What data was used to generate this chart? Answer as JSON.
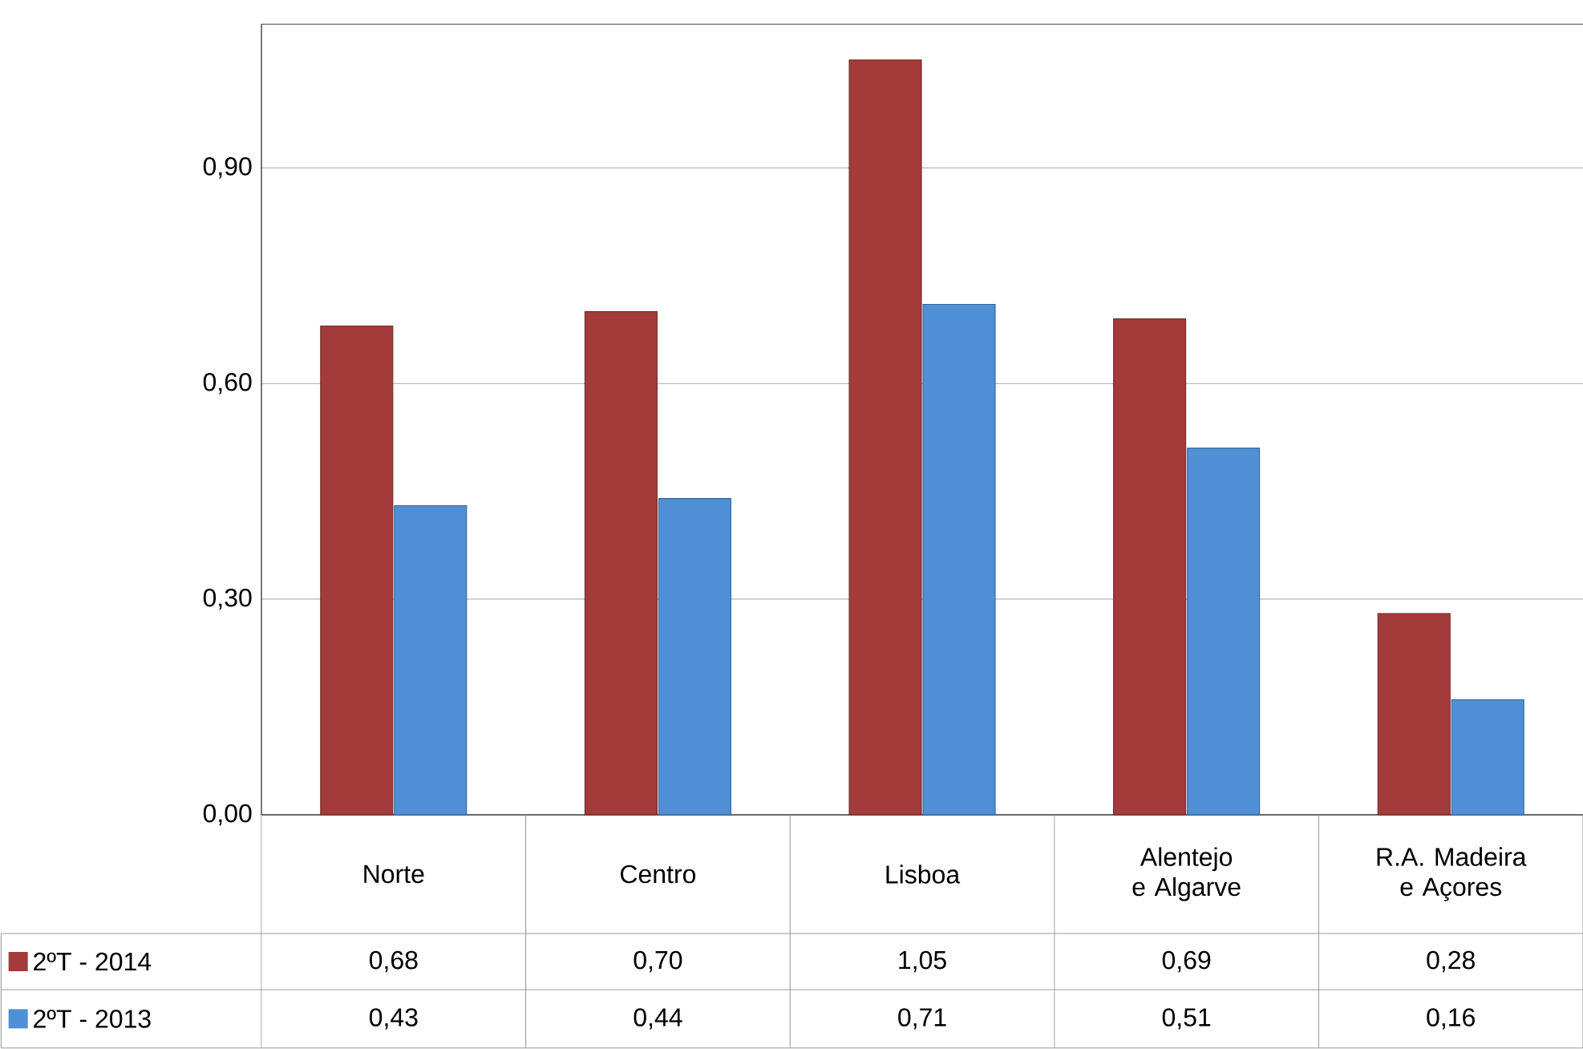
{
  "chart_data": {
    "type": "bar",
    "categories": [
      "Norte",
      "Centro",
      "Lisboa",
      "Alentejo e Algarve",
      "R.A. Madeira e Açores"
    ],
    "series": [
      {
        "name": "2ºT - 2014",
        "color": "#a23b3a",
        "values": [
          0.68,
          0.7,
          1.05,
          0.69,
          0.28
        ],
        "value_labels": [
          "0,68",
          "0,70",
          "1,05",
          "0,69",
          "0,28"
        ]
      },
      {
        "name": "2ºT - 2013",
        "color": "#4f8fd6",
        "values": [
          0.43,
          0.44,
          0.71,
          0.51,
          0.16
        ],
        "value_labels": [
          "0,43",
          "0,44",
          "0,71",
          "0,51",
          "0,16"
        ]
      }
    ],
    "ylim": [
      0,
      1.1
    ],
    "yticks": [
      {
        "value": 0,
        "label": "0,00"
      },
      {
        "value": 0.3,
        "label": "0,30"
      },
      {
        "value": 0.6,
        "label": "0,60"
      },
      {
        "value": 0.9,
        "label": "0,90"
      }
    ],
    "grid": "y",
    "legend": "bottom left"
  }
}
